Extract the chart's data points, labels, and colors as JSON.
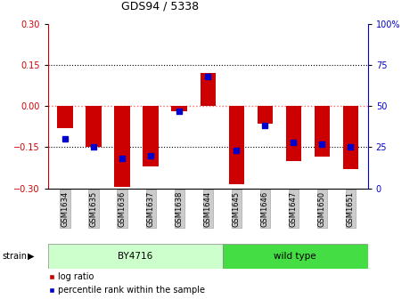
{
  "title": "GDS94 / 5338",
  "samples": [
    "GSM1634",
    "GSM1635",
    "GSM1636",
    "GSM1637",
    "GSM1638",
    "GSM1644",
    "GSM1645",
    "GSM1646",
    "GSM1647",
    "GSM1650",
    "GSM1651"
  ],
  "log_ratios": [
    -0.08,
    -0.15,
    -0.295,
    -0.22,
    -0.02,
    0.12,
    -0.285,
    -0.065,
    -0.2,
    -0.185,
    -0.23
  ],
  "percentile_ranks": [
    30,
    25,
    18,
    20,
    47,
    68,
    23,
    38,
    28,
    27,
    25
  ],
  "by4716_count": 6,
  "wild_type_count": 5,
  "by4716_label": "BY4716",
  "wild_type_label": "wild type",
  "by4716_color": "#CCFFCC",
  "wild_type_color": "#44DD44",
  "ylim": [
    -0.3,
    0.3
  ],
  "yticks_left": [
    -0.3,
    -0.15,
    0,
    0.15,
    0.3
  ],
  "yticks_right": [
    0,
    25,
    50,
    75,
    100
  ],
  "bar_color": "#CC0000",
  "dot_color": "#0000CC",
  "hline_color": "#FF6666",
  "dot_hline_color": "#FF6666",
  "dotted_color": "#000000",
  "bg_color": "#FFFFFF",
  "tick_label_color_left": "#CC0000",
  "tick_label_color_right": "#0000CC",
  "strain_label": "strain",
  "legend_items": [
    "log ratio",
    "percentile rank within the sample"
  ],
  "title_fontsize": 9,
  "tick_fontsize": 7,
  "xlabel_fontsize": 6,
  "legend_fontsize": 7
}
